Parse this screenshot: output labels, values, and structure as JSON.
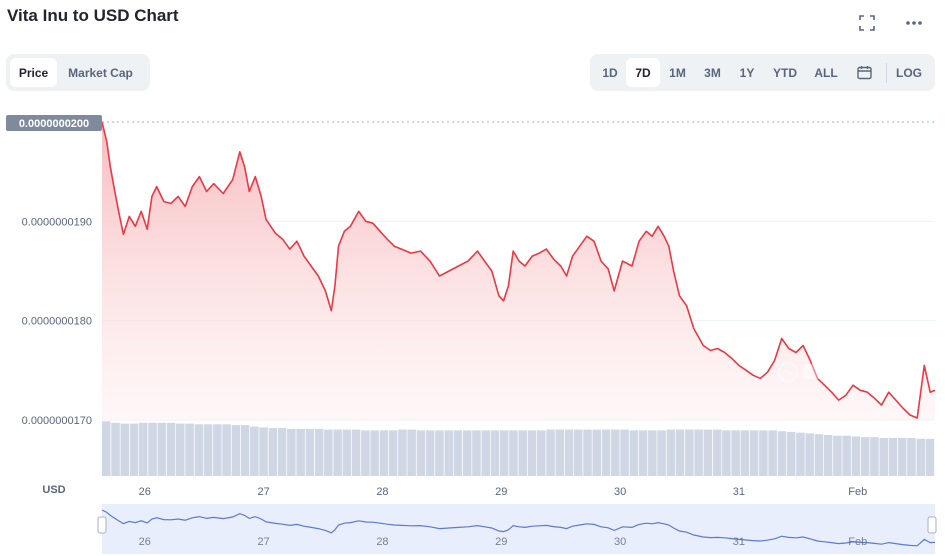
{
  "header": {
    "title": "Vita Inu to USD Chart"
  },
  "view_tabs": [
    {
      "label": "Price",
      "active": true
    },
    {
      "label": "Market Cap",
      "active": false
    }
  ],
  "range_tabs": [
    {
      "label": "1D",
      "active": false
    },
    {
      "label": "7D",
      "active": true
    },
    {
      "label": "1M",
      "active": false
    },
    {
      "label": "3M",
      "active": false
    },
    {
      "label": "1Y",
      "active": false
    },
    {
      "label": "YTD",
      "active": false
    },
    {
      "label": "ALL",
      "active": false
    }
  ],
  "scale_toggle": "LOG",
  "icons": {
    "expand": "expand-icon",
    "more": "more-icon",
    "calendar": "calendar-icon",
    "watermark": "coinmarketcap-logo"
  },
  "colors": {
    "line": "#ea3943",
    "area_top": "#f7b7bb",
    "volume": "#cfd6e4",
    "navigator_line": "#5b7ad6",
    "navigator_fill": "#e9eefc",
    "current_price_badge": "#808a9d"
  },
  "chart_data": {
    "type": "area",
    "unit": "USD",
    "current_price_label": "0.0000000200",
    "y_ticks": [
      "0.0000000200",
      "0.0000000190",
      "0.0000000180",
      "0.0000000170"
    ],
    "y_tick_values": [
      2e-08,
      1.9e-08,
      1.8e-08,
      1.7e-08
    ],
    "x_ticks": [
      "26",
      "27",
      "28",
      "29",
      "30",
      "31",
      "Feb"
    ],
    "x_tick_day_index": [
      1,
      2,
      3,
      4,
      5,
      6,
      7
    ],
    "ylim": [
      1.7e-08,
      2e-08
    ],
    "xlim_day_index": [
      0.64,
      7.65
    ],
    "series": [
      {
        "x": [
          0.64,
          0.68,
          0.71,
          0.74,
          0.78,
          0.82,
          0.87,
          0.92,
          0.97,
          1.02,
          1.06,
          1.1,
          1.16,
          1.22,
          1.28,
          1.34,
          1.4,
          1.46,
          1.52,
          1.58,
          1.66,
          1.74,
          1.8,
          1.84,
          1.88,
          1.93,
          1.98,
          2.02,
          2.06,
          2.1,
          2.16,
          2.22,
          2.28,
          2.34,
          2.4,
          2.46,
          2.52,
          2.57,
          2.6,
          2.63,
          2.68,
          2.73,
          2.8,
          2.86,
          2.92,
          2.98,
          3.04,
          3.1,
          3.16,
          3.24,
          3.32,
          3.4,
          3.48,
          3.56,
          3.64,
          3.72,
          3.8,
          3.86,
          3.92,
          3.98,
          4.02,
          4.06,
          4.1,
          4.15,
          4.2,
          4.26,
          4.32,
          4.38,
          4.44,
          4.5,
          4.55,
          4.6,
          4.66,
          4.72,
          4.78,
          4.84,
          4.9,
          4.95,
          5.02,
          5.1,
          5.16,
          5.22,
          5.27,
          5.32,
          5.37,
          5.41,
          5.45,
          5.5,
          5.56,
          5.62,
          5.7,
          5.76,
          5.82,
          5.88,
          5.94,
          6.0,
          6.06,
          6.12,
          6.18,
          6.24,
          6.3,
          6.36,
          6.42,
          6.48,
          6.54,
          6.6,
          6.66,
          6.72,
          6.78,
          6.84,
          6.9,
          6.96,
          7.02,
          7.08,
          7.14,
          7.2,
          7.26,
          7.32,
          7.38,
          7.44,
          7.5,
          7.56,
          7.61,
          7.65
        ],
        "y": [
          2e-08,
          1.98e-08,
          1.955e-08,
          1.935e-08,
          1.91e-08,
          1.887e-08,
          1.905e-08,
          1.895e-08,
          1.91e-08,
          1.892e-08,
          1.925e-08,
          1.935e-08,
          1.92e-08,
          1.918e-08,
          1.925e-08,
          1.915e-08,
          1.935e-08,
          1.945e-08,
          1.93e-08,
          1.938e-08,
          1.928e-08,
          1.942e-08,
          1.97e-08,
          1.955e-08,
          1.93e-08,
          1.945e-08,
          1.925e-08,
          1.902e-08,
          1.895e-08,
          1.888e-08,
          1.882e-08,
          1.872e-08,
          1.88e-08,
          1.865e-08,
          1.855e-08,
          1.845e-08,
          1.83e-08,
          1.81e-08,
          1.835e-08,
          1.875e-08,
          1.89e-08,
          1.895e-08,
          1.91e-08,
          1.9e-08,
          1.898e-08,
          1.89e-08,
          1.882e-08,
          1.875e-08,
          1.872e-08,
          1.868e-08,
          1.87e-08,
          1.86e-08,
          1.845e-08,
          1.85e-08,
          1.855e-08,
          1.86e-08,
          1.87e-08,
          1.86e-08,
          1.85e-08,
          1.825e-08,
          1.82e-08,
          1.835e-08,
          1.87e-08,
          1.86e-08,
          1.855e-08,
          1.865e-08,
          1.868e-08,
          1.872e-08,
          1.862e-08,
          1.855e-08,
          1.845e-08,
          1.865e-08,
          1.875e-08,
          1.885e-08,
          1.88e-08,
          1.86e-08,
          1.852e-08,
          1.83e-08,
          1.86e-08,
          1.855e-08,
          1.88e-08,
          1.89e-08,
          1.885e-08,
          1.895e-08,
          1.885e-08,
          1.875e-08,
          1.85e-08,
          1.825e-08,
          1.815e-08,
          1.792e-08,
          1.775e-08,
          1.77e-08,
          1.772e-08,
          1.768e-08,
          1.762e-08,
          1.755e-08,
          1.75e-08,
          1.745e-08,
          1.742e-08,
          1.748e-08,
          1.76e-08,
          1.782e-08,
          1.772e-08,
          1.768e-08,
          1.775e-08,
          1.76e-08,
          1.742e-08,
          1.735e-08,
          1.728e-08,
          1.72e-08,
          1.725e-08,
          1.735e-08,
          1.73e-08,
          1.728e-08,
          1.722e-08,
          1.715e-08,
          1.728e-08,
          1.72e-08,
          1.712e-08,
          1.705e-08,
          1.702e-08,
          1.755e-08,
          1.728e-08,
          1.73e-08
        ]
      }
    ],
    "volume": [
      0.72,
      0.7,
      0.69,
      0.69,
      0.7,
      0.7,
      0.7,
      0.7,
      0.69,
      0.69,
      0.68,
      0.68,
      0.68,
      0.68,
      0.67,
      0.67,
      0.65,
      0.64,
      0.63,
      0.63,
      0.62,
      0.62,
      0.62,
      0.62,
      0.61,
      0.61,
      0.61,
      0.61,
      0.6,
      0.6,
      0.6,
      0.6,
      0.61,
      0.61,
      0.6,
      0.6,
      0.6,
      0.6,
      0.6,
      0.6,
      0.6,
      0.6,
      0.6,
      0.6,
      0.6,
      0.6,
      0.6,
      0.6,
      0.61,
      0.61,
      0.61,
      0.61,
      0.61,
      0.61,
      0.61,
      0.61,
      0.61,
      0.6,
      0.6,
      0.6,
      0.6,
      0.61,
      0.61,
      0.61,
      0.61,
      0.61,
      0.61,
      0.6,
      0.6,
      0.6,
      0.6,
      0.6,
      0.6,
      0.59,
      0.58,
      0.57,
      0.56,
      0.55,
      0.54,
      0.53,
      0.53,
      0.52,
      0.51,
      0.51,
      0.5,
      0.5,
      0.5,
      0.5,
      0.49,
      0.49
    ]
  }
}
